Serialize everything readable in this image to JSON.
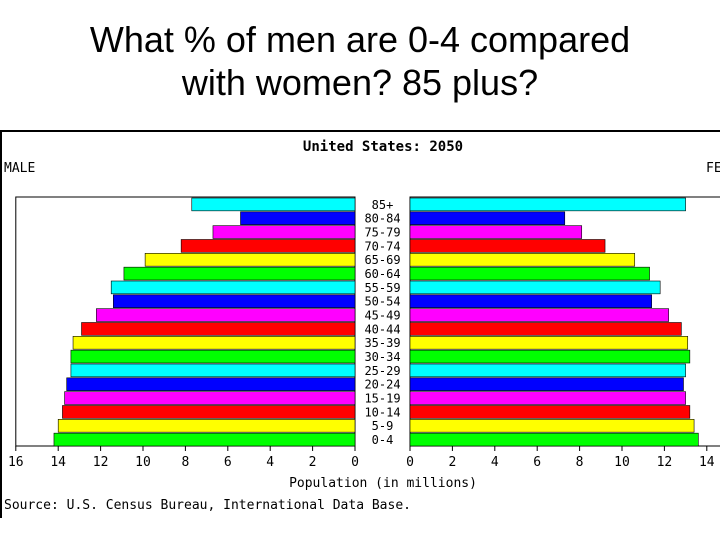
{
  "slide": {
    "title_line1": "What % of men are 0-4 compared",
    "title_line2": "with women? 85 plus?"
  },
  "chart_data": {
    "type": "bar",
    "title": "United States: 2050",
    "left_label": "MALE",
    "right_label": "FE",
    "xlabel": "Population (in millions)",
    "source": "Source: U.S. Census Bureau, International Data Base.",
    "xlim": [
      0,
      16
    ],
    "male_ticks": [
      "16",
      "14",
      "12",
      "10",
      "8",
      "6",
      "4",
      "2",
      "0"
    ],
    "female_ticks": [
      "0",
      "2",
      "4",
      "6",
      "8",
      "10",
      "12",
      "14"
    ],
    "categories": [
      "0-4",
      "5-9",
      "10-14",
      "15-19",
      "20-24",
      "25-29",
      "30-34",
      "35-39",
      "40-44",
      "45-49",
      "50-54",
      "55-59",
      "60-64",
      "65-69",
      "70-74",
      "75-79",
      "80-84",
      "85+"
    ],
    "colors": [
      "#00ff00",
      "#ffff00",
      "#ff0000",
      "#ff00ff",
      "#0000ff",
      "#00ffff",
      "#00ff00",
      "#ffff00",
      "#ff0000",
      "#ff00ff",
      "#0000ff",
      "#00ffff",
      "#00ff00",
      "#ffff00",
      "#ff0000",
      "#ff00ff",
      "#0000ff",
      "#00ffff"
    ],
    "series": [
      {
        "name": "MALE",
        "values": [
          14.2,
          14.0,
          13.8,
          13.7,
          13.6,
          13.4,
          13.4,
          13.3,
          12.9,
          12.2,
          11.4,
          11.5,
          10.9,
          9.9,
          8.2,
          6.7,
          5.4,
          7.7
        ]
      },
      {
        "name": "FE",
        "values": [
          13.6,
          13.4,
          13.2,
          13.0,
          12.9,
          13.0,
          13.2,
          13.1,
          12.8,
          12.2,
          11.4,
          11.8,
          11.3,
          10.6,
          9.2,
          8.1,
          7.3,
          13.0
        ]
      }
    ]
  }
}
